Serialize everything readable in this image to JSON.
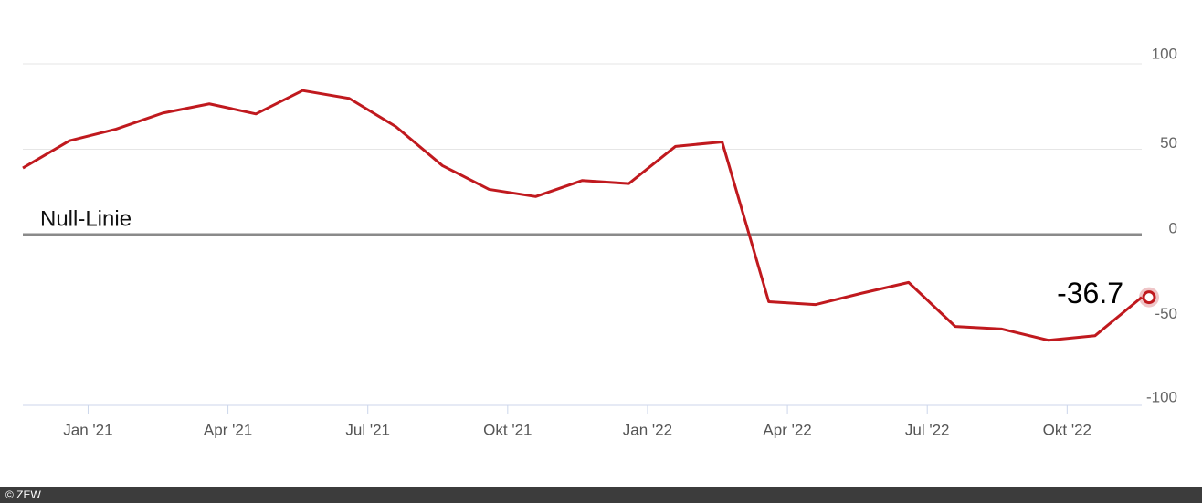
{
  "chart_data": {
    "type": "line",
    "x": [
      "2020-11",
      "2020-12",
      "2021-01",
      "2021-02",
      "2021-03",
      "2021-04",
      "2021-05",
      "2021-06",
      "2021-07",
      "2021-08",
      "2021-09",
      "2021-10",
      "2021-11",
      "2021-12",
      "2022-01",
      "2022-02",
      "2022-03",
      "2022-04",
      "2022-05",
      "2022-06",
      "2022-07",
      "2022-08",
      "2022-09",
      "2022-10",
      "2022-11"
    ],
    "series": [
      {
        "name": "ZEW",
        "color": "#c0191e",
        "values": [
          39.0,
          55.0,
          61.8,
          71.2,
          76.6,
          70.7,
          84.4,
          79.8,
          63.3,
          40.4,
          26.5,
          22.3,
          31.7,
          29.9,
          51.7,
          54.3,
          -39.3,
          -41.0,
          -34.3,
          -28.0,
          -53.8,
          -55.3,
          -61.9,
          -59.2,
          -36.7
        ]
      }
    ],
    "xlim": [
      "2020-11",
      "2022-11"
    ],
    "xticks": [
      {
        "value": "2021-01",
        "label": "Jan '21"
      },
      {
        "value": "2021-04",
        "label": "Apr '21"
      },
      {
        "value": "2021-07",
        "label": "Jul '21"
      },
      {
        "value": "2021-10",
        "label": "Okt '21"
      },
      {
        "value": "2022-01",
        "label": "Jan '22"
      },
      {
        "value": "2022-04",
        "label": "Apr '22"
      },
      {
        "value": "2022-07",
        "label": "Jul '22"
      },
      {
        "value": "2022-10",
        "label": "Okt '22"
      }
    ],
    "ylim": [
      -100,
      100
    ],
    "yticks": [
      -100,
      -50,
      0,
      50,
      100
    ],
    "grid": true,
    "annotation": "Null-Linie",
    "source": "© ZEW"
  }
}
